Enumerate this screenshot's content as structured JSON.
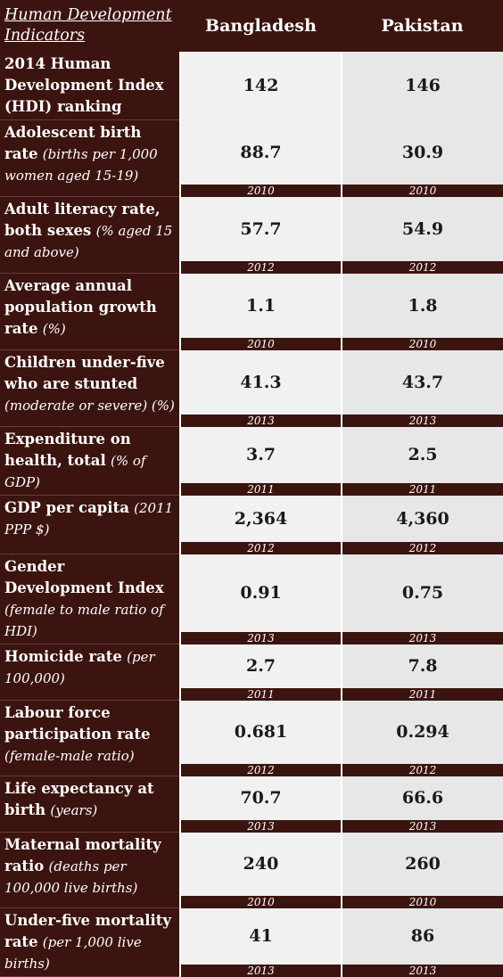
{
  "header": {
    "title_line1": "Human Development",
    "title_line2": "Indicators",
    "countries": [
      "Bangladesh",
      "Pakistan"
    ]
  },
  "rows": [
    {
      "label_bold": "2014 Human Development Index (HDI) ranking",
      "label_italic": "",
      "bangladesh": "142",
      "pakistan": "146",
      "year": ""
    },
    {
      "label_bold": "Adolescent birth rate",
      "label_italic": "(births per 1,000 women aged 15-19)",
      "bangladesh": "88.7",
      "pakistan": "30.9",
      "year": "2010"
    },
    {
      "label_bold": "Adult literacy rate, both sexes",
      "label_italic": "(% aged 15 and above)",
      "bangladesh": "57.7",
      "pakistan": "54.9",
      "year": "2012"
    },
    {
      "label_bold": "Average annual population growth rate",
      "label_italic": "(%)",
      "bangladesh": "1.1",
      "pakistan": "1.8",
      "year": "2010"
    },
    {
      "label_bold": "Children under-five who are stunted",
      "label_italic": "(moderate or severe) (%)",
      "bangladesh": "41.3",
      "pakistan": "43.7",
      "year": "2013"
    },
    {
      "label_bold": "Expenditure on health, total",
      "label_italic": "(% of GDP)",
      "bangladesh": "3.7",
      "pakistan": "2.5",
      "year": "2011"
    },
    {
      "label_bold": "GDP per capita",
      "label_italic": "(2011 PPP $)",
      "bangladesh": "2,364",
      "pakistan": "4,360",
      "year": "2012"
    },
    {
      "label_bold": "Gender Development Index",
      "label_italic": "(female to male ratio of HDI)",
      "bangladesh": "0.91",
      "pakistan": "0.75",
      "year": "2013"
    },
    {
      "label_bold": "Homicide rate",
      "label_italic": "(per 100,000)",
      "bangladesh": "2.7",
      "pakistan": "7.8",
      "year": "2011"
    },
    {
      "label_bold": "Labour force participation rate",
      "label_italic": "(female-male ratio)",
      "bangladesh": "0.681",
      "pakistan": "0.294",
      "year": "2012"
    },
    {
      "label_bold": "Life expectancy at birth",
      "label_italic": "(years)",
      "bangladesh": "70.7",
      "pakistan": "66.6",
      "year": "2013"
    },
    {
      "label_bold": "Maternal mortality ratio",
      "label_italic": "(deaths per 100,000 live births)",
      "bangladesh": "240",
      "pakistan": "260",
      "year": "2010"
    },
    {
      "label_bold": "Under-five mortality rate",
      "label_italic": "(per 1,000 live births)",
      "bangladesh": "41",
      "pakistan": "86",
      "year": "2013"
    }
  ]
}
